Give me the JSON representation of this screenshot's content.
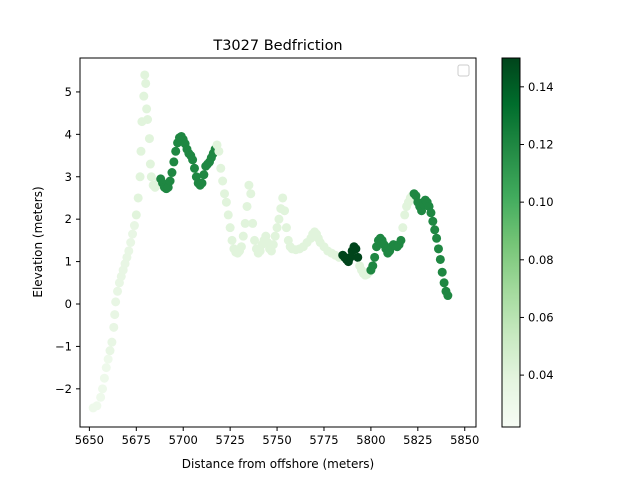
{
  "chart_data": {
    "type": "scatter",
    "title": "T3027 Bedfriction",
    "xlabel": "Distance from offshore (meters)",
    "ylabel": "Elevation (meters)",
    "xlim": [
      5645,
      5856
    ],
    "ylim": [
      -2.9,
      5.8
    ],
    "x_ticks": [
      5650,
      5675,
      5700,
      5725,
      5750,
      5775,
      5800,
      5825,
      5850
    ],
    "y_ticks": [
      -2,
      -1,
      0,
      1,
      2,
      3,
      4,
      5
    ],
    "legend": {
      "placement": "top-right",
      "entries": []
    },
    "grid": false,
    "colorbar": {
      "colormap": "Greens",
      "range": [
        0.022,
        0.15
      ],
      "ticks": [
        0.04,
        0.06,
        0.08,
        0.1,
        0.12,
        0.14
      ]
    },
    "series": [
      {
        "points": [
          [
            5652,
            -2.45,
            0.03
          ],
          [
            5654,
            -2.4,
            0.03
          ],
          [
            5656,
            -2.2,
            0.03
          ],
          [
            5657,
            -2.0,
            0.03
          ],
          [
            5658,
            -1.75,
            0.03
          ],
          [
            5659,
            -1.5,
            0.03
          ],
          [
            5660,
            -1.3,
            0.03
          ],
          [
            5661,
            -1.1,
            0.035
          ],
          [
            5662,
            -0.9,
            0.035
          ],
          [
            5663,
            -0.55,
            0.035
          ],
          [
            5663.5,
            -0.25,
            0.035
          ],
          [
            5664,
            0.05,
            0.035
          ],
          [
            5665,
            0.3,
            0.035
          ],
          [
            5666,
            0.5,
            0.035
          ],
          [
            5667,
            0.65,
            0.035
          ],
          [
            5668,
            0.8,
            0.035
          ],
          [
            5669,
            0.95,
            0.035
          ],
          [
            5670,
            1.1,
            0.035
          ],
          [
            5671,
            1.25,
            0.035
          ],
          [
            5672,
            1.45,
            0.035
          ],
          [
            5673,
            1.65,
            0.035
          ],
          [
            5674,
            1.85,
            0.035
          ],
          [
            5675,
            2.1,
            0.04
          ],
          [
            5676,
            2.5,
            0.04
          ],
          [
            5677,
            3.0,
            0.04
          ],
          [
            5677.5,
            3.6,
            0.04
          ],
          [
            5678,
            4.3,
            0.04
          ],
          [
            5679,
            4.9,
            0.04
          ],
          [
            5679.5,
            5.4,
            0.04
          ],
          [
            5680,
            5.2,
            0.04
          ],
          [
            5680.5,
            4.6,
            0.04
          ],
          [
            5681,
            4.35,
            0.04
          ],
          [
            5682,
            3.9,
            0.04
          ],
          [
            5682.5,
            3.3,
            0.04
          ],
          [
            5683,
            3.0,
            0.04
          ],
          [
            5684,
            2.8,
            0.04
          ],
          [
            5685,
            2.75,
            0.04
          ],
          [
            5686,
            2.8,
            0.04
          ],
          [
            5687,
            2.9,
            0.04
          ],
          [
            5688,
            2.95,
            0.12
          ],
          [
            5689,
            2.85,
            0.12
          ],
          [
            5690,
            2.75,
            0.12
          ],
          [
            5691,
            2.72,
            0.12
          ],
          [
            5692,
            2.75,
            0.12
          ],
          [
            5693,
            2.9,
            0.12
          ],
          [
            5694,
            3.1,
            0.12
          ],
          [
            5695,
            3.35,
            0.12
          ],
          [
            5696,
            3.6,
            0.12
          ],
          [
            5697,
            3.8,
            0.12
          ],
          [
            5698,
            3.92,
            0.12
          ],
          [
            5699,
            3.95,
            0.12
          ],
          [
            5700,
            3.88,
            0.12
          ],
          [
            5701,
            3.78,
            0.12
          ],
          [
            5702,
            3.65,
            0.12
          ],
          [
            5703,
            3.55,
            0.12
          ],
          [
            5704,
            3.5,
            0.12
          ],
          [
            5705,
            3.4,
            0.12
          ],
          [
            5706,
            3.2,
            0.12
          ],
          [
            5707,
            3.0,
            0.12
          ],
          [
            5708,
            2.85,
            0.12
          ],
          [
            5709,
            2.8,
            0.12
          ],
          [
            5710,
            2.85,
            0.12
          ],
          [
            5711,
            3.05,
            0.12
          ],
          [
            5712,
            3.25,
            0.12
          ],
          [
            5713,
            3.3,
            0.12
          ],
          [
            5714,
            3.35,
            0.12
          ],
          [
            5715,
            3.45,
            0.12
          ],
          [
            5716,
            3.55,
            0.12
          ],
          [
            5717,
            3.65,
            0.12
          ],
          [
            5718,
            3.75,
            0.04
          ],
          [
            5719,
            3.6,
            0.04
          ],
          [
            5720,
            3.2,
            0.04
          ],
          [
            5721,
            2.9,
            0.04
          ],
          [
            5722,
            2.6,
            0.04
          ],
          [
            5723,
            2.4,
            0.04
          ],
          [
            5724,
            2.1,
            0.04
          ],
          [
            5725,
            1.8,
            0.04
          ],
          [
            5726,
            1.5,
            0.04
          ],
          [
            5727,
            1.3,
            0.04
          ],
          [
            5728,
            1.22,
            0.04
          ],
          [
            5729,
            1.2,
            0.04
          ],
          [
            5730,
            1.25,
            0.04
          ],
          [
            5731,
            1.35,
            0.04
          ],
          [
            5732,
            1.6,
            0.04
          ],
          [
            5733,
            1.9,
            0.04
          ],
          [
            5734,
            2.3,
            0.04
          ],
          [
            5735,
            2.8,
            0.04
          ],
          [
            5736,
            2.6,
            0.04
          ],
          [
            5737,
            1.9,
            0.04
          ],
          [
            5738,
            1.5,
            0.04
          ],
          [
            5739,
            1.3,
            0.04
          ],
          [
            5740,
            1.2,
            0.04
          ],
          [
            5741,
            1.25,
            0.04
          ],
          [
            5742,
            1.4,
            0.04
          ],
          [
            5743,
            1.5,
            0.04
          ],
          [
            5744,
            1.6,
            0.04
          ],
          [
            5745,
            1.45,
            0.04
          ],
          [
            5746,
            1.3,
            0.04
          ],
          [
            5747,
            1.25,
            0.04
          ],
          [
            5748,
            1.4,
            0.04
          ],
          [
            5749,
            1.6,
            0.04
          ],
          [
            5750,
            1.8,
            0.04
          ],
          [
            5751,
            2.0,
            0.04
          ],
          [
            5752,
            2.25,
            0.04
          ],
          [
            5753,
            2.5,
            0.04
          ],
          [
            5754,
            2.2,
            0.04
          ],
          [
            5755,
            1.8,
            0.04
          ],
          [
            5756,
            1.5,
            0.04
          ],
          [
            5757,
            1.35,
            0.04
          ],
          [
            5758,
            1.3,
            0.04
          ],
          [
            5760,
            1.28,
            0.04
          ],
          [
            5762,
            1.3,
            0.04
          ],
          [
            5764,
            1.35,
            0.04
          ],
          [
            5766,
            1.45,
            0.04
          ],
          [
            5768,
            1.55,
            0.04
          ],
          [
            5769,
            1.65,
            0.04
          ],
          [
            5770,
            1.7,
            0.04
          ],
          [
            5771,
            1.65,
            0.04
          ],
          [
            5772,
            1.55,
            0.04
          ],
          [
            5773,
            1.45,
            0.04
          ],
          [
            5775,
            1.35,
            0.04
          ],
          [
            5777,
            1.25,
            0.04
          ],
          [
            5779,
            1.2,
            0.04
          ],
          [
            5781,
            1.15,
            0.04
          ],
          [
            5783,
            1.1,
            0.04
          ],
          [
            5785,
            1.15,
            0.15
          ],
          [
            5786,
            1.1,
            0.15
          ],
          [
            5787,
            1.05,
            0.15
          ],
          [
            5788,
            1.0,
            0.15
          ],
          [
            5789,
            1.1,
            0.15
          ],
          [
            5790,
            1.25,
            0.15
          ],
          [
            5791,
            1.35,
            0.15
          ],
          [
            5792,
            1.3,
            0.15
          ],
          [
            5793,
            1.1,
            0.15
          ],
          [
            5794,
            0.9,
            0.04
          ],
          [
            5795,
            0.8,
            0.04
          ],
          [
            5796,
            0.72,
            0.04
          ],
          [
            5797,
            0.68,
            0.04
          ],
          [
            5798,
            0.7,
            0.04
          ],
          [
            5799,
            0.75,
            0.04
          ],
          [
            5800,
            0.8,
            0.12
          ],
          [
            5801,
            0.9,
            0.12
          ],
          [
            5802,
            1.1,
            0.12
          ],
          [
            5803,
            1.35,
            0.12
          ],
          [
            5804,
            1.5,
            0.12
          ],
          [
            5805,
            1.55,
            0.12
          ],
          [
            5806,
            1.5,
            0.12
          ],
          [
            5807,
            1.4,
            0.12
          ],
          [
            5808,
            1.3,
            0.12
          ],
          [
            5809,
            1.2,
            0.12
          ],
          [
            5810,
            1.25,
            0.12
          ],
          [
            5811,
            1.35,
            0.12
          ],
          [
            5812,
            1.4,
            0.12
          ],
          [
            5813,
            1.38,
            0.12
          ],
          [
            5814,
            1.35,
            0.12
          ],
          [
            5815,
            1.4,
            0.12
          ],
          [
            5816,
            1.5,
            0.12
          ],
          [
            5817,
            1.8,
            0.04
          ],
          [
            5818,
            2.1,
            0.04
          ],
          [
            5819,
            2.3,
            0.04
          ],
          [
            5820,
            2.4,
            0.04
          ],
          [
            5821,
            2.5,
            0.04
          ],
          [
            5822,
            2.55,
            0.04
          ],
          [
            5823,
            2.6,
            0.12
          ],
          [
            5824,
            2.55,
            0.12
          ],
          [
            5825,
            2.4,
            0.12
          ],
          [
            5826,
            2.3,
            0.12
          ],
          [
            5827,
            2.2,
            0.12
          ],
          [
            5828,
            2.35,
            0.12
          ],
          [
            5829,
            2.45,
            0.12
          ],
          [
            5830,
            2.4,
            0.12
          ],
          [
            5831,
            2.3,
            0.12
          ],
          [
            5832,
            2.15,
            0.12
          ],
          [
            5833,
            1.95,
            0.12
          ],
          [
            5834,
            1.75,
            0.12
          ],
          [
            5835,
            1.55,
            0.12
          ],
          [
            5836,
            1.3,
            0.12
          ],
          [
            5837,
            1.05,
            0.12
          ],
          [
            5838,
            0.75,
            0.12
          ],
          [
            5839,
            0.5,
            0.12
          ],
          [
            5840,
            0.3,
            0.12
          ],
          [
            5841,
            0.2,
            0.12
          ]
        ]
      }
    ]
  }
}
